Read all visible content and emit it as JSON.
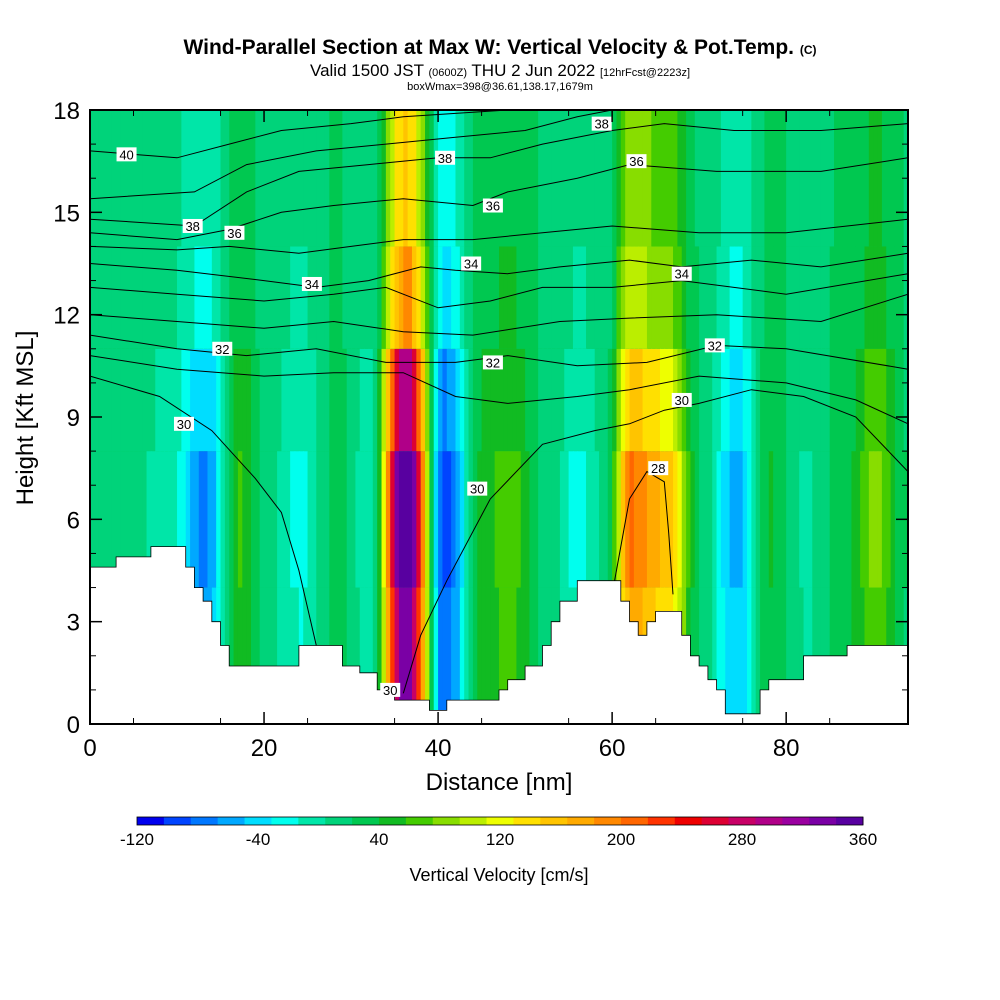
{
  "title": {
    "main": "Wind-Parallel Section at Max W: Vertical Velocity & Pot.Temp.",
    "copyright": "(C)",
    "valid_prefix": "Valid 1500 JST",
    "valid_z": "(0600Z)",
    "valid_date": "THU 2 Jun 2022",
    "forecast": "[12hrFcst@2223z]",
    "box": "boxWmax=398@36.61,138.17,1679m"
  },
  "chart_data": {
    "type": "heatmap",
    "xlabel": "Distance [nm]",
    "ylabel": "Height [Kft MSL]",
    "xlim": [
      0,
      94
    ],
    "ylim": [
      0,
      18
    ],
    "x_ticks": [
      "0",
      "20",
      "40",
      "60",
      "80"
    ],
    "y_ticks": [
      "0",
      "3",
      "6",
      "9",
      "12",
      "15",
      "18"
    ],
    "colorbar": {
      "label": "Vertical Velocity [cm/s]",
      "ticks": [
        "-120",
        "-40",
        "40",
        "120",
        "200",
        "280",
        "360"
      ],
      "colors": [
        "#0000ee",
        "#0044ff",
        "#0077ff",
        "#00a8ff",
        "#00ddff",
        "#00ffee",
        "#00e6a8",
        "#00d37a",
        "#00c850",
        "#11bb22",
        "#44cc00",
        "#88dd00",
        "#bbee00",
        "#eeff00",
        "#ffe000",
        "#ffc400",
        "#ffaa00",
        "#ff8800",
        "#ff6600",
        "#ff3300",
        "#ee0000",
        "#dd0033",
        "#c80066",
        "#b00088",
        "#9a00a0",
        "#7a00a5",
        "#5800a0"
      ]
    },
    "ww_bands": [
      {
        "x": 2,
        "w": 6
      },
      {
        "x": 5,
        "w": 10
      },
      {
        "x": 9,
        "w": -10
      },
      {
        "x": 13,
        "w": -70
      },
      {
        "x": 17,
        "w": 60
      },
      {
        "x": 20,
        "w": 10
      },
      {
        "x": 24,
        "w": -20
      },
      {
        "x": 28,
        "w": 30
      },
      {
        "x": 32,
        "w": -10
      },
      {
        "x": 36,
        "w": 398
      },
      {
        "x": 40.5,
        "w": -100
      },
      {
        "x": 45,
        "w": 50
      },
      {
        "x": 48,
        "w": 70
      },
      {
        "x": 52,
        "w": 20
      },
      {
        "x": 56,
        "w": -20
      },
      {
        "x": 59,
        "w": 10
      },
      {
        "x": 62,
        "w": 200
      },
      {
        "x": 66,
        "w": 160
      },
      {
        "x": 70,
        "w": 20
      },
      {
        "x": 74,
        "w": -60
      },
      {
        "x": 78,
        "w": 40
      },
      {
        "x": 82,
        "w": 0
      },
      {
        "x": 86,
        "w": 30
      },
      {
        "x": 90,
        "w": 80
      },
      {
        "x": 94,
        "w": 20
      }
    ],
    "terrain": [
      [
        0,
        4.6
      ],
      [
        3,
        4.6
      ],
      [
        3,
        4.9
      ],
      [
        7,
        4.9
      ],
      [
        7,
        5.2
      ],
      [
        11,
        5.2
      ],
      [
        11,
        4.6
      ],
      [
        12,
        4.6
      ],
      [
        12,
        4.0
      ],
      [
        13,
        4.0
      ],
      [
        13,
        3.6
      ],
      [
        14,
        3.6
      ],
      [
        14,
        3.0
      ],
      [
        15,
        3.0
      ],
      [
        15,
        2.3
      ],
      [
        16,
        2.3
      ],
      [
        16,
        1.7
      ],
      [
        24,
        1.7
      ],
      [
        24,
        2.3
      ],
      [
        29,
        2.3
      ],
      [
        29,
        1.7
      ],
      [
        31,
        1.7
      ],
      [
        31,
        1.5
      ],
      [
        33,
        1.5
      ],
      [
        33,
        1.0
      ],
      [
        35,
        1.0
      ],
      [
        35,
        0.7
      ],
      [
        39,
        0.7
      ],
      [
        39,
        0.4
      ],
      [
        41,
        0.4
      ],
      [
        41,
        0.7
      ],
      [
        47,
        0.7
      ],
      [
        47,
        1.0
      ],
      [
        48,
        1.0
      ],
      [
        48,
        1.3
      ],
      [
        50,
        1.3
      ],
      [
        50,
        1.7
      ],
      [
        52,
        1.7
      ],
      [
        52,
        2.3
      ],
      [
        53,
        2.3
      ],
      [
        53,
        3.0
      ],
      [
        54,
        3.0
      ],
      [
        54,
        3.6
      ],
      [
        56,
        3.6
      ],
      [
        56,
        4.2
      ],
      [
        61,
        4.2
      ],
      [
        61,
        3.6
      ],
      [
        62,
        3.6
      ],
      [
        62,
        3.0
      ],
      [
        63,
        3.0
      ],
      [
        63,
        2.6
      ],
      [
        64,
        2.6
      ],
      [
        64,
        3.0
      ],
      [
        65,
        3.0
      ],
      [
        65,
        3.3
      ],
      [
        68,
        3.3
      ],
      [
        68,
        2.6
      ],
      [
        69,
        2.6
      ],
      [
        69,
        2.0
      ],
      [
        70,
        2.0
      ],
      [
        70,
        1.7
      ],
      [
        71,
        1.7
      ],
      [
        71,
        1.3
      ],
      [
        72,
        1.3
      ],
      [
        72,
        1.0
      ],
      [
        73,
        1.0
      ],
      [
        73,
        0.3
      ],
      [
        77,
        0.3
      ],
      [
        77,
        1.0
      ],
      [
        78,
        1.0
      ],
      [
        78,
        1.3
      ],
      [
        82,
        1.3
      ],
      [
        82,
        2.0
      ],
      [
        87,
        2.0
      ],
      [
        87,
        2.3
      ],
      [
        94,
        2.3
      ]
    ],
    "theta_contours": [
      {
        "label": "30",
        "points": [
          [
            0,
            10.2
          ],
          [
            8,
            9.6
          ],
          [
            14,
            8.6
          ],
          [
            19,
            7.2
          ],
          [
            22,
            6.2
          ],
          [
            24,
            4.5
          ],
          [
            26,
            2.3
          ]
        ]
      },
      {
        "label": "30",
        "points": [
          [
            36,
            0.9
          ],
          [
            38,
            2.6
          ],
          [
            41,
            4.2
          ],
          [
            46,
            6.6
          ],
          [
            52,
            8.2
          ],
          [
            58,
            8.6
          ],
          [
            62,
            8.8
          ],
          [
            66,
            9.2
          ],
          [
            70,
            9.4
          ],
          [
            76,
            9.8
          ],
          [
            82,
            9.6
          ],
          [
            88,
            9.0
          ],
          [
            94,
            7.4
          ]
        ]
      },
      {
        "label": "",
        "points": [
          [
            0,
            10.8
          ],
          [
            10,
            10.4
          ],
          [
            20,
            10.2
          ],
          [
            28,
            10.3
          ],
          [
            36,
            10.3
          ],
          [
            42,
            9.6
          ],
          [
            48,
            9.4
          ],
          [
            56,
            9.6
          ],
          [
            62,
            9.8
          ],
          [
            70,
            10.2
          ],
          [
            80,
            10.0
          ],
          [
            88,
            9.5
          ],
          [
            94,
            8.8
          ]
        ]
      },
      {
        "label": "32",
        "points": [
          [
            0,
            11.4
          ],
          [
            10,
            11.0
          ],
          [
            18,
            10.8
          ],
          [
            26,
            11.0
          ],
          [
            34,
            10.6
          ],
          [
            42,
            10.6
          ],
          [
            48,
            10.8
          ],
          [
            56,
            10.5
          ],
          [
            64,
            10.6
          ],
          [
            72,
            11.1
          ],
          [
            80,
            11.0
          ],
          [
            94,
            10.4
          ]
        ]
      },
      {
        "label": "",
        "points": [
          [
            0,
            12.0
          ],
          [
            10,
            11.8
          ],
          [
            20,
            11.6
          ],
          [
            28,
            11.8
          ],
          [
            36,
            11.5
          ],
          [
            44,
            11.4
          ],
          [
            54,
            11.8
          ],
          [
            62,
            11.9
          ],
          [
            72,
            12.0
          ],
          [
            84,
            11.8
          ],
          [
            94,
            12.6
          ]
        ]
      },
      {
        "label": "",
        "points": [
          [
            0,
            12.8
          ],
          [
            10,
            12.6
          ],
          [
            20,
            12.4
          ],
          [
            28,
            12.6
          ],
          [
            34,
            12.8
          ],
          [
            40,
            12.2
          ],
          [
            46,
            12.4
          ],
          [
            52,
            12.8
          ],
          [
            60,
            12.8
          ],
          [
            68,
            13.0
          ],
          [
            80,
            12.6
          ],
          [
            94,
            13.2
          ]
        ]
      },
      {
        "label": "34",
        "points": [
          [
            0,
            13.5
          ],
          [
            10,
            13.3
          ],
          [
            20,
            13.0
          ],
          [
            26,
            12.8
          ],
          [
            32,
            13.0
          ],
          [
            38,
            13.4
          ],
          [
            42,
            13.3
          ],
          [
            48,
            13.2
          ],
          [
            54,
            13.4
          ],
          [
            62,
            13.6
          ],
          [
            68,
            13.4
          ],
          [
            76,
            13.6
          ],
          [
            84,
            13.4
          ],
          [
            94,
            13.8
          ]
        ]
      },
      {
        "label": "",
        "points": [
          [
            0,
            14.0
          ],
          [
            10,
            13.9
          ],
          [
            16,
            14.0
          ],
          [
            24,
            13.8
          ],
          [
            30,
            14.0
          ],
          [
            36,
            14.2
          ],
          [
            44,
            14.2
          ],
          [
            52,
            14.4
          ],
          [
            60,
            14.6
          ],
          [
            70,
            14.4
          ],
          [
            80,
            14.4
          ],
          [
            94,
            14.8
          ]
        ]
      },
      {
        "label": "36",
        "points": [
          [
            0,
            14.4
          ],
          [
            10,
            14.2
          ],
          [
            16,
            14.5
          ],
          [
            22,
            15.0
          ],
          [
            28,
            15.2
          ],
          [
            36,
            15.4
          ],
          [
            44,
            15.2
          ],
          [
            48,
            15.6
          ],
          [
            56,
            16.0
          ],
          [
            62,
            16.4
          ],
          [
            72,
            16.2
          ],
          [
            84,
            16.2
          ],
          [
            94,
            16.6
          ]
        ]
      },
      {
        "label": "38",
        "points": [
          [
            0,
            14.8
          ],
          [
            12,
            14.6
          ],
          [
            18,
            15.6
          ],
          [
            24,
            16.2
          ],
          [
            32,
            16.4
          ],
          [
            40,
            16.6
          ],
          [
            46,
            16.6
          ],
          [
            52,
            17.0
          ],
          [
            60,
            17.4
          ],
          [
            66,
            17.6
          ],
          [
            74,
            17.4
          ],
          [
            84,
            17.4
          ],
          [
            94,
            17.6
          ]
        ]
      },
      {
        "label": "",
        "points": [
          [
            0,
            15.4
          ],
          [
            12,
            15.6
          ],
          [
            18,
            16.4
          ],
          [
            26,
            16.8
          ],
          [
            34,
            17.0
          ],
          [
            42,
            17.2
          ],
          [
            50,
            17.4
          ],
          [
            56,
            17.8
          ],
          [
            60,
            18.0
          ]
        ]
      },
      {
        "label": "40",
        "points": [
          [
            0,
            16.8
          ],
          [
            10,
            16.6
          ],
          [
            16,
            17.0
          ],
          [
            22,
            17.4
          ],
          [
            30,
            17.6
          ],
          [
            36,
            17.8
          ],
          [
            42,
            17.9
          ],
          [
            48,
            18.0
          ]
        ]
      },
      {
        "label": "28",
        "points": [
          [
            60,
            3.8
          ],
          [
            61,
            5.2
          ],
          [
            62,
            6.6
          ],
          [
            64,
            7.4
          ],
          [
            66,
            7.1
          ],
          [
            66.5,
            5.6
          ],
          [
            67,
            3.8
          ]
        ]
      }
    ],
    "contour_labels": [
      {
        "text": "40",
        "x": 4.2,
        "y": 16.7
      },
      {
        "text": "38",
        "x": 11.8,
        "y": 14.6
      },
      {
        "text": "36",
        "x": 16.6,
        "y": 14.4
      },
      {
        "text": "34",
        "x": 25.5,
        "y": 12.9
      },
      {
        "text": "32",
        "x": 15.2,
        "y": 11.0
      },
      {
        "text": "30",
        "x": 10.8,
        "y": 8.8
      },
      {
        "text": "30",
        "x": 34.5,
        "y": 1.0
      },
      {
        "text": "30",
        "x": 44.5,
        "y": 6.9
      },
      {
        "text": "38",
        "x": 40.8,
        "y": 16.6
      },
      {
        "text": "36",
        "x": 46.3,
        "y": 15.2
      },
      {
        "text": "34",
        "x": 43.8,
        "y": 13.5
      },
      {
        "text": "32",
        "x": 46.3,
        "y": 10.6
      },
      {
        "text": "38",
        "x": 58.8,
        "y": 17.6
      },
      {
        "text": "36",
        "x": 62.8,
        "y": 16.5
      },
      {
        "text": "34",
        "x": 68.0,
        "y": 13.2
      },
      {
        "text": "32",
        "x": 71.8,
        "y": 11.1
      },
      {
        "text": "30",
        "x": 68.0,
        "y": 9.5
      },
      {
        "text": "28",
        "x": 65.3,
        "y": 7.5
      }
    ]
  }
}
